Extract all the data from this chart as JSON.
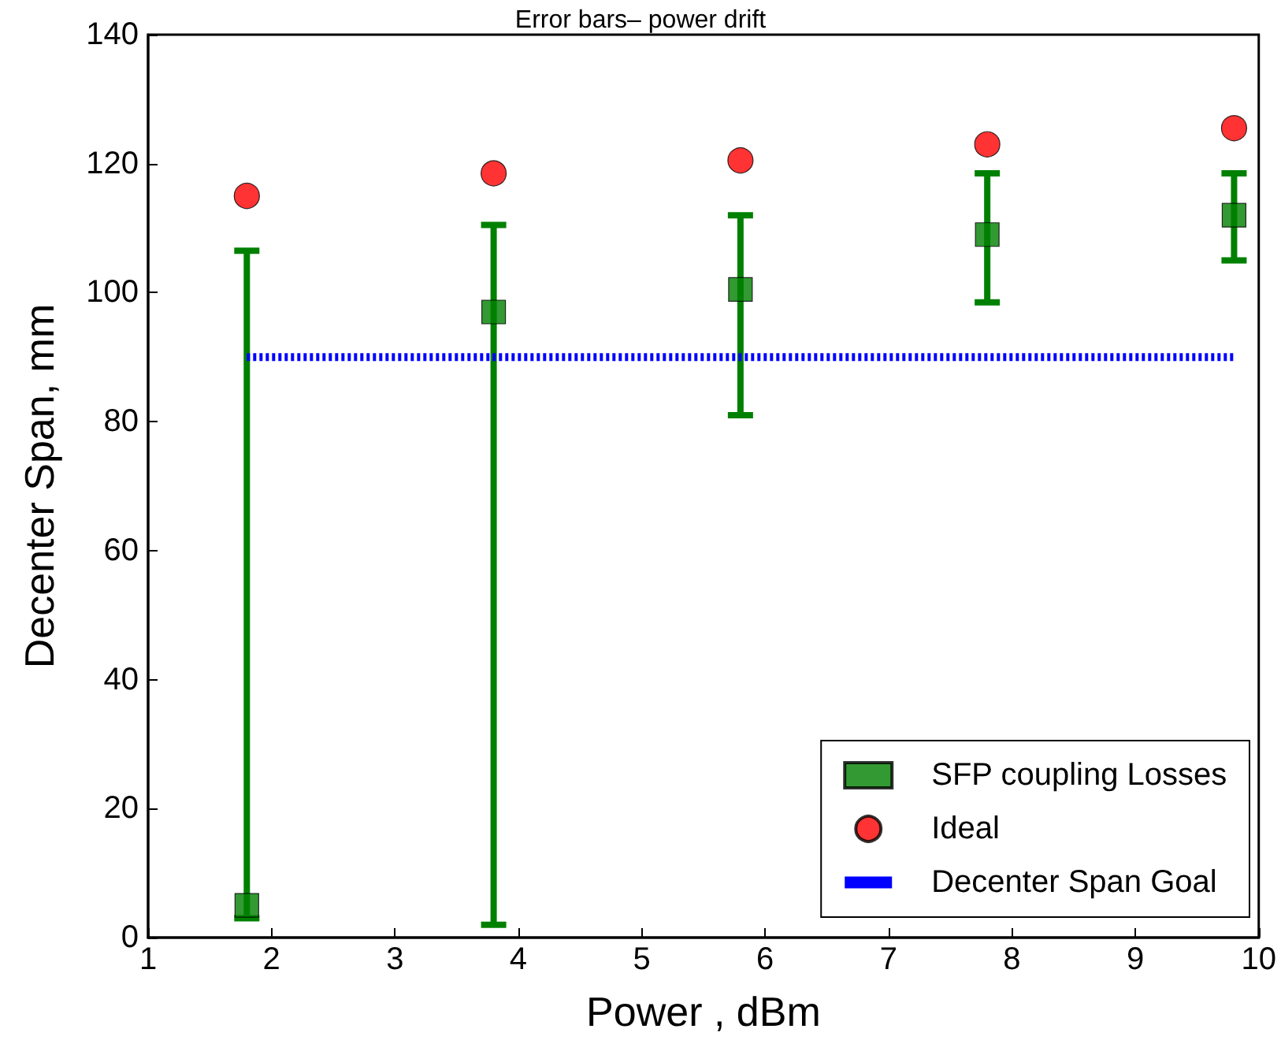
{
  "chart_data": {
    "type": "scatter",
    "title": "Error bars– power drift",
    "xlabel": "Power , dBm",
    "ylabel": "Decenter Span, mm",
    "x": [
      1.8,
      3.8,
      5.8,
      7.8,
      9.8
    ],
    "series": [
      {
        "name": "SFP coupling Losses",
        "color": "#008000",
        "marker": "square",
        "values": [
          5,
          97,
          100.5,
          109,
          112
        ],
        "errors": [
          [
            3,
            106.5
          ],
          [
            2,
            110.5
          ],
          [
            81,
            112
          ],
          [
            98.5,
            118.5
          ],
          [
            105,
            118.5
          ]
        ]
      },
      {
        "name": "Ideal",
        "color": "#ff0000",
        "marker": "circle",
        "values": [
          115,
          118.5,
          120.5,
          123,
          125.5
        ]
      },
      {
        "name": "Decenter Span Goal",
        "type": "line",
        "color": "#0000ff",
        "marker": "none",
        "line_style": "dotted",
        "x": [
          1.8,
          9.8
        ],
        "values": [
          90,
          90
        ]
      }
    ],
    "xlim": [
      1,
      10
    ],
    "xticks": [
      1,
      2,
      3,
      4,
      5,
      6,
      7,
      8,
      9,
      10
    ],
    "ylim": [
      0,
      140
    ],
    "yticks": [
      0,
      20,
      40,
      60,
      80,
      100,
      120,
      140
    ],
    "grid": false,
    "legend": "bottom right"
  }
}
